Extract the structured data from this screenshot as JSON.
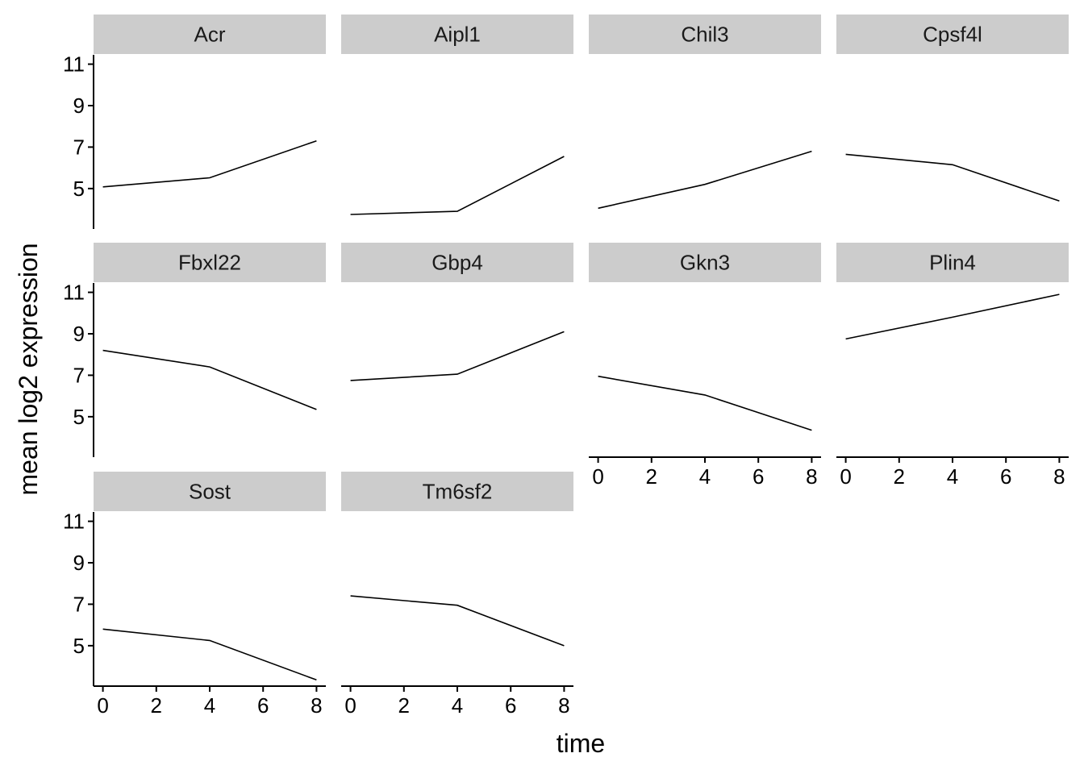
{
  "chart_data": {
    "type": "line",
    "layout": "facet_wrap",
    "xlabel": "time",
    "ylabel": "mean log2 expression",
    "x": [
      0,
      4,
      8
    ],
    "xticks": [
      "0",
      "2",
      "4",
      "6",
      "8"
    ],
    "xlim": [
      -0.35,
      8.35
    ],
    "yticks": [
      "5",
      "7",
      "9",
      "11"
    ],
    "ylim": [
      3.05,
      11.45
    ],
    "line_color": "#000000",
    "strip_fill": "#cccccc",
    "panels": [
      {
        "name": "Acr",
        "values": [
          5.08,
          5.52,
          7.3
        ]
      },
      {
        "name": "Aipl1",
        "values": [
          3.75,
          3.9,
          6.55
        ]
      },
      {
        "name": "Chil3",
        "values": [
          4.05,
          5.2,
          6.8
        ]
      },
      {
        "name": "Cpsf4l",
        "values": [
          6.65,
          6.15,
          4.4
        ]
      },
      {
        "name": "Fbxl22",
        "values": [
          8.2,
          7.4,
          5.35
        ]
      },
      {
        "name": "Gbp4",
        "values": [
          6.75,
          7.05,
          9.1
        ]
      },
      {
        "name": "Gkn3",
        "values": [
          6.95,
          6.05,
          4.35
        ]
      },
      {
        "name": "Plin4",
        "values": [
          8.75,
          9.8,
          10.9
        ]
      },
      {
        "name": "Sost",
        "values": [
          5.8,
          5.25,
          3.35
        ]
      },
      {
        "name": "Tm6sf2",
        "values": [
          7.4,
          6.95,
          5.0
        ]
      }
    ]
  }
}
